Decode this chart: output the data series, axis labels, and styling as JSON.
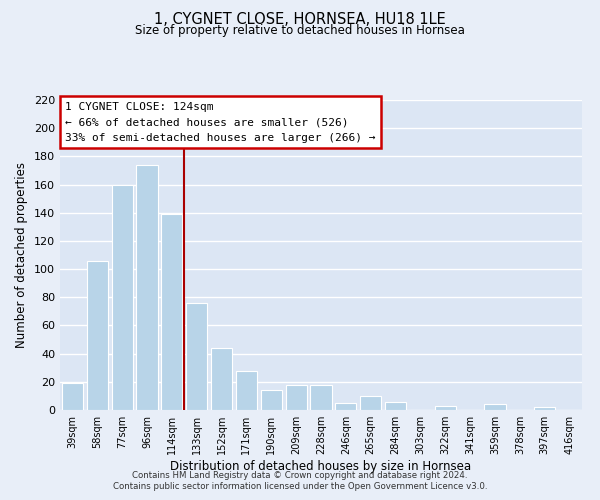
{
  "title": "1, CYGNET CLOSE, HORNSEA, HU18 1LE",
  "subtitle": "Size of property relative to detached houses in Hornsea",
  "xlabel": "Distribution of detached houses by size in Hornsea",
  "ylabel": "Number of detached properties",
  "bar_labels": [
    "39sqm",
    "58sqm",
    "77sqm",
    "96sqm",
    "114sqm",
    "133sqm",
    "152sqm",
    "171sqm",
    "190sqm",
    "209sqm",
    "228sqm",
    "246sqm",
    "265sqm",
    "284sqm",
    "303sqm",
    "322sqm",
    "341sqm",
    "359sqm",
    "378sqm",
    "397sqm",
    "416sqm"
  ],
  "bar_values": [
    19,
    106,
    160,
    174,
    139,
    76,
    44,
    28,
    14,
    18,
    18,
    5,
    10,
    6,
    0,
    3,
    0,
    4,
    0,
    2,
    0
  ],
  "bar_color": "#b8d4e8",
  "vline_color": "#aa0000",
  "annotation_title": "1 CYGNET CLOSE: 124sqm",
  "annotation_line1": "← 66% of detached houses are smaller (526)",
  "annotation_line2": "33% of semi-detached houses are larger (266) →",
  "annotation_box_edgecolor": "#cc0000",
  "ylim": [
    0,
    220
  ],
  "yticks": [
    0,
    20,
    40,
    60,
    80,
    100,
    120,
    140,
    160,
    180,
    200,
    220
  ],
  "footer1": "Contains HM Land Registry data © Crown copyright and database right 2024.",
  "footer2": "Contains public sector information licensed under the Open Government Licence v3.0.",
  "bg_color": "#e8eef8",
  "plot_bg_color": "#dce6f4"
}
